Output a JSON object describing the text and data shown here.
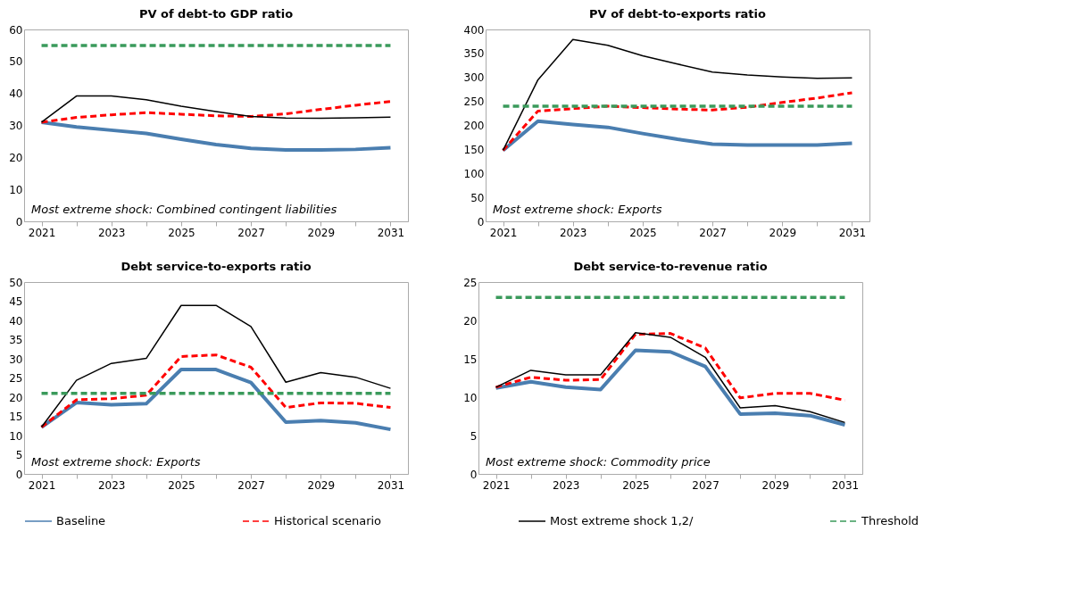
{
  "chart_data": [
    {
      "type": "line",
      "title": "PV of debt-to GDP ratio",
      "categories": [
        "2021",
        null,
        "2023",
        null,
        "2025",
        null,
        "2027",
        null,
        "2029",
        null,
        "2031"
      ],
      "ylim": [
        0,
        60
      ],
      "yticks": [
        0,
        10,
        20,
        30,
        40,
        50,
        60
      ],
      "grid": false,
      "legend": "bottom",
      "annotations": [
        "Most extreme shock: Combined contingent liabilities"
      ],
      "series": [
        {
          "name": "Baseline",
          "color": "#4a7eb0",
          "line_style": "solid",
          "values": [
            31,
            29.5,
            28.5,
            27.5,
            25.7,
            24,
            22.8,
            22.3,
            22.3,
            22.5,
            23
          ]
        },
        {
          "name": "Historical scenario",
          "color": "#ff0000",
          "line_style": "dashed",
          "values": [
            31,
            32.5,
            33.3,
            34,
            33.5,
            33,
            32.8,
            33.6,
            35,
            36.3,
            37.5
          ]
        },
        {
          "name": "Most extreme shock 1,2/",
          "color": "#000000",
          "line_style": "solid",
          "values": [
            31,
            39.2,
            39.2,
            38,
            36,
            34.3,
            32.8,
            32.3,
            32.2,
            32.4,
            32.6
          ]
        },
        {
          "name": "Threshold",
          "color": "#3a9a5b",
          "line_style": "dashed",
          "values": [
            55,
            55,
            55,
            55,
            55,
            55,
            55,
            55,
            55,
            55,
            55
          ]
        }
      ]
    },
    {
      "type": "line",
      "title": "PV of debt-to-exports ratio",
      "categories": [
        "2021",
        null,
        "2023",
        null,
        "2025",
        null,
        "2027",
        null,
        "2029",
        null,
        "2031"
      ],
      "ylim": [
        0,
        400
      ],
      "yticks": [
        0,
        50,
        100,
        150,
        200,
        250,
        300,
        350,
        400
      ],
      "grid": false,
      "legend": "bottom",
      "annotations": [
        "Most extreme shock: Exports"
      ],
      "series": [
        {
          "name": "Baseline",
          "color": "#4a7eb0",
          "line_style": "solid",
          "values": [
            148,
            209,
            202,
            196,
            183,
            171,
            161,
            159,
            159,
            159,
            163
          ]
        },
        {
          "name": "Historical scenario",
          "color": "#ff0000",
          "line_style": "dashed",
          "values": [
            148,
            230,
            235,
            240,
            237,
            234,
            232,
            238,
            248,
            257,
            268
          ]
        },
        {
          "name": "Most extreme shock 1,2/",
          "color": "#000000",
          "line_style": "solid",
          "values": [
            148,
            295,
            379,
            367,
            345,
            328,
            311,
            305,
            301,
            298,
            299
          ]
        },
        {
          "name": "Threshold",
          "color": "#3a9a5b",
          "line_style": "dashed",
          "values": [
            240,
            240,
            240,
            240,
            240,
            240,
            240,
            240,
            240,
            240,
            240
          ]
        }
      ]
    },
    {
      "type": "line",
      "title": "Debt service-to-exports ratio",
      "categories": [
        "2021",
        null,
        "2023",
        null,
        "2025",
        null,
        "2027",
        null,
        "2029",
        null,
        "2031"
      ],
      "ylim": [
        0,
        50
      ],
      "yticks": [
        0,
        5,
        10,
        15,
        20,
        25,
        30,
        35,
        40,
        45,
        50
      ],
      "grid": false,
      "legend": "bottom",
      "annotations": [
        "Most extreme shock: Exports"
      ],
      "series": [
        {
          "name": "Baseline",
          "color": "#4a7eb0",
          "line_style": "solid",
          "values": [
            12.2,
            18.6,
            18,
            18.3,
            27.2,
            27.2,
            23.8,
            13.5,
            13.9,
            13.3,
            11.6
          ]
        },
        {
          "name": "Historical scenario",
          "color": "#ff0000",
          "line_style": "dashed",
          "values": [
            12.2,
            19.3,
            19.6,
            20.5,
            30.6,
            31,
            27.8,
            17.3,
            18.5,
            18.4,
            17.3
          ]
        },
        {
          "name": "Most extreme shock 1,2/",
          "color": "#000000",
          "line_style": "solid",
          "values": [
            12.2,
            24.4,
            28.8,
            30.1,
            43.9,
            43.9,
            38.4,
            23.9,
            26.4,
            25.2,
            22.3
          ]
        },
        {
          "name": "Threshold",
          "color": "#3a9a5b",
          "line_style": "dashed",
          "values": [
            21,
            21,
            21,
            21,
            21,
            21,
            21,
            21,
            21,
            21,
            21
          ]
        }
      ]
    },
    {
      "type": "line",
      "title": "Debt service-to-revenue ratio",
      "categories": [
        "2021",
        null,
        "2023",
        null,
        "2025",
        null,
        "2027",
        null,
        "2029",
        null,
        "2031"
      ],
      "ylim": [
        0,
        25
      ],
      "yticks": [
        0,
        5,
        10,
        15,
        20,
        25
      ],
      "grid": false,
      "legend": "bottom",
      "annotations": [
        "Most extreme shock: Commodity price"
      ],
      "series": [
        {
          "name": "Baseline",
          "color": "#4a7eb0",
          "line_style": "solid",
          "values": [
            11.2,
            12,
            11.3,
            11,
            16.1,
            15.9,
            14,
            7.8,
            7.9,
            7.6,
            6.4
          ]
        },
        {
          "name": "Historical scenario",
          "color": "#ff0000",
          "line_style": "dashed",
          "values": [
            11.3,
            12.6,
            12.2,
            12.3,
            18.2,
            18.3,
            16.4,
            9.9,
            10.5,
            10.5,
            9.6
          ]
        },
        {
          "name": "Most extreme shock 1,2/",
          "color": "#000000",
          "line_style": "solid",
          "values": [
            11.3,
            13.5,
            12.9,
            12.9,
            18.4,
            17.8,
            15.2,
            8.6,
            8.9,
            8.1,
            6.7
          ]
        },
        {
          "name": "Threshold",
          "color": "#3a9a5b",
          "line_style": "dashed",
          "values": [
            23,
            23,
            23,
            23,
            23,
            23,
            23,
            23,
            23,
            23,
            23
          ]
        }
      ]
    }
  ]
}
